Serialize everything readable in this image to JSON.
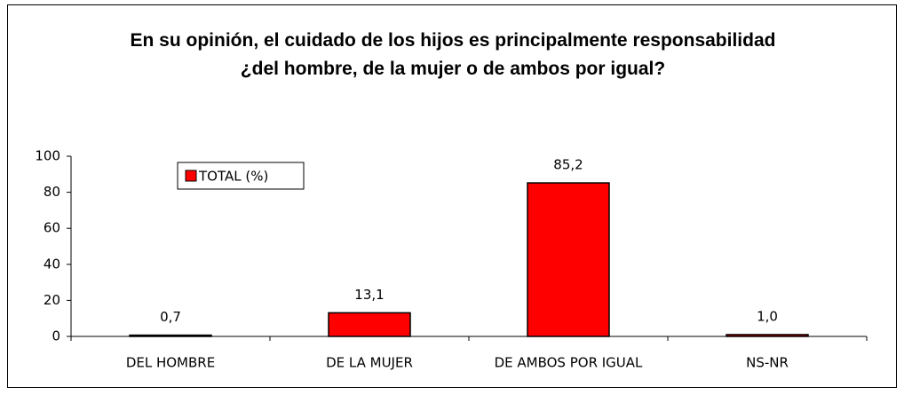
{
  "chart_data": {
    "type": "bar",
    "title": "En su opinión, el cuidado de los hijos es principalmente responsabilidad ¿del hombre, de la mujer o de ambos por igual?",
    "categories": [
      "DEL HOMBRE",
      "DE LA MUJER",
      "DE AMBOS POR IGUAL",
      "NS-NR"
    ],
    "series": [
      {
        "name": "TOTAL (%)",
        "color": "#ff0000",
        "values": [
          0.7,
          13.1,
          85.2,
          1.0
        ],
        "value_labels": [
          "0,7",
          "13,1",
          "85,2",
          "1,0"
        ]
      }
    ],
    "ylim": [
      0,
      100
    ],
    "yticks": [
      0,
      20,
      40,
      60,
      80,
      100
    ],
    "grid": false,
    "legend": "upper left"
  }
}
